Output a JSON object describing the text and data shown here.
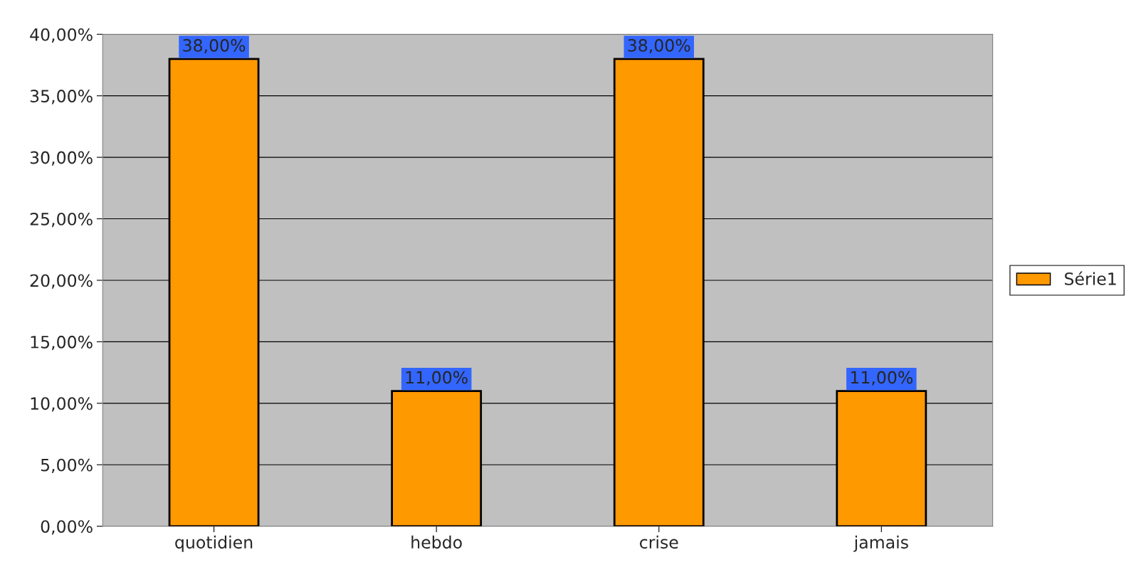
{
  "chart_data": {
    "type": "bar",
    "categories": [
      "quotidien",
      "hebdo",
      "crise",
      "jamais"
    ],
    "series": [
      {
        "name": "Série1",
        "color": "#ff9900",
        "values": [
          38,
          11,
          38,
          11
        ],
        "value_labels": [
          "38,00%",
          "11,00%",
          "38,00%",
          "11,00%"
        ]
      }
    ],
    "ylim": [
      0,
      40
    ],
    "yticks": [
      {
        "value": 0,
        "label": "0,00%"
      },
      {
        "value": 5,
        "label": "5,00%"
      },
      {
        "value": 10,
        "label": "10,00%"
      },
      {
        "value": 15,
        "label": "15,00%"
      },
      {
        "value": 20,
        "label": "20,00%"
      },
      {
        "value": 25,
        "label": "25,00%"
      },
      {
        "value": 30,
        "label": "30,00%"
      },
      {
        "value": 35,
        "label": "35,00%"
      },
      {
        "value": 40,
        "label": "40,00%"
      }
    ],
    "grid": "y",
    "legend": "right"
  }
}
